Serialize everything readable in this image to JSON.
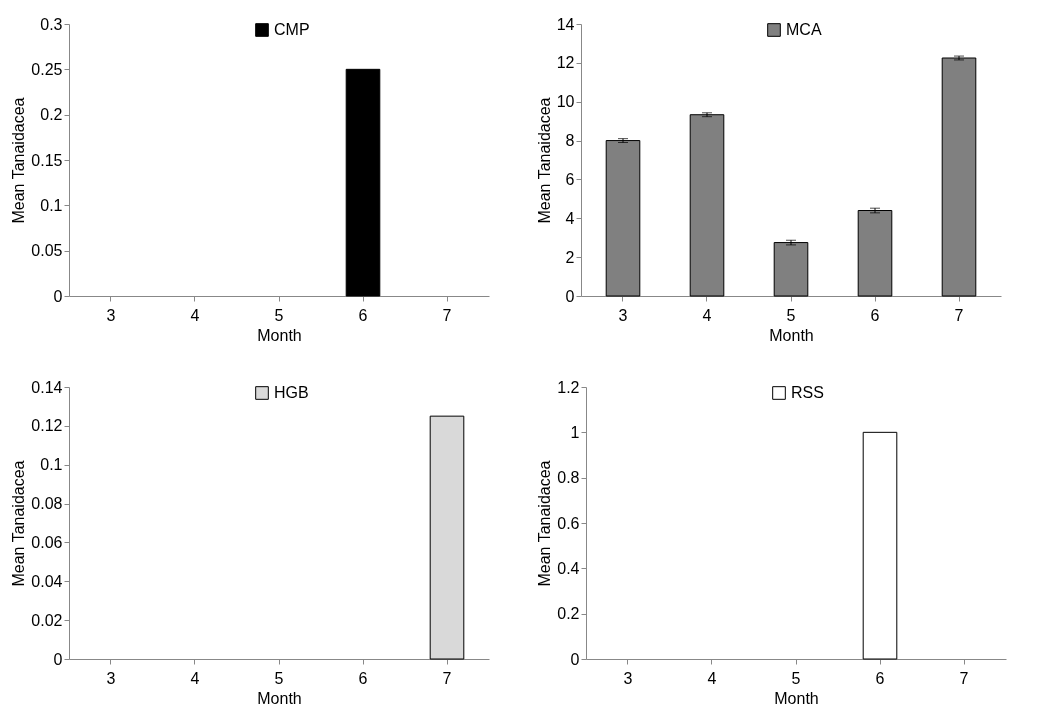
{
  "chart_data": [
    {
      "type": "bar",
      "categories": [
        "3",
        "4",
        "5",
        "6",
        "7"
      ],
      "xlabel": "Month",
      "ylabel": "Mean Tanaidacea",
      "legend": "top",
      "ylim": [
        0,
        0.3
      ],
      "yticks": [
        0,
        0.05,
        0.1,
        0.15,
        0.2,
        0.25,
        0.3
      ],
      "series": [
        {
          "name": "CMP",
          "color": "#000000",
          "values": [
            0,
            0,
            0,
            0.25,
            0
          ]
        }
      ]
    },
    {
      "type": "bar",
      "categories": [
        "3",
        "4",
        "5",
        "6",
        "7"
      ],
      "xlabel": "Month",
      "ylabel": "Mean Tanaidacea",
      "legend": "top",
      "ylim": [
        0,
        14
      ],
      "yticks": [
        0,
        2,
        4,
        6,
        8,
        10,
        12,
        14
      ],
      "series": [
        {
          "name": "MCA",
          "color": "#808080",
          "values": [
            8,
            9.33,
            2.75,
            4.4,
            12.25
          ],
          "errors": [
            0.1,
            0.1,
            0.12,
            0.12,
            0.1
          ]
        }
      ]
    },
    {
      "type": "bar",
      "categories": [
        "3",
        "4",
        "5",
        "6",
        "7"
      ],
      "xlabel": "Month",
      "ylabel": "Mean Tanaidacea",
      "legend": "top",
      "ylim": [
        0,
        0.14
      ],
      "yticks": [
        0,
        0.02,
        0.04,
        0.06,
        0.08,
        0.1,
        0.12,
        0.14
      ],
      "series": [
        {
          "name": "HGB",
          "color": "#d9d9d9",
          "values": [
            0,
            0,
            0,
            0,
            0.125
          ]
        }
      ]
    },
    {
      "type": "bar",
      "categories": [
        "3",
        "4",
        "5",
        "6",
        "7"
      ],
      "xlabel": "Month",
      "ylabel": "Mean Tanaidacea",
      "legend": "top",
      "ylim": [
        0,
        1.2
      ],
      "yticks": [
        0,
        0.2,
        0.4,
        0.6,
        0.8,
        1,
        1.2
      ],
      "series": [
        {
          "name": "RSS",
          "color": "#ffffff",
          "values": [
            0,
            0,
            0,
            1,
            0
          ]
        }
      ]
    }
  ]
}
